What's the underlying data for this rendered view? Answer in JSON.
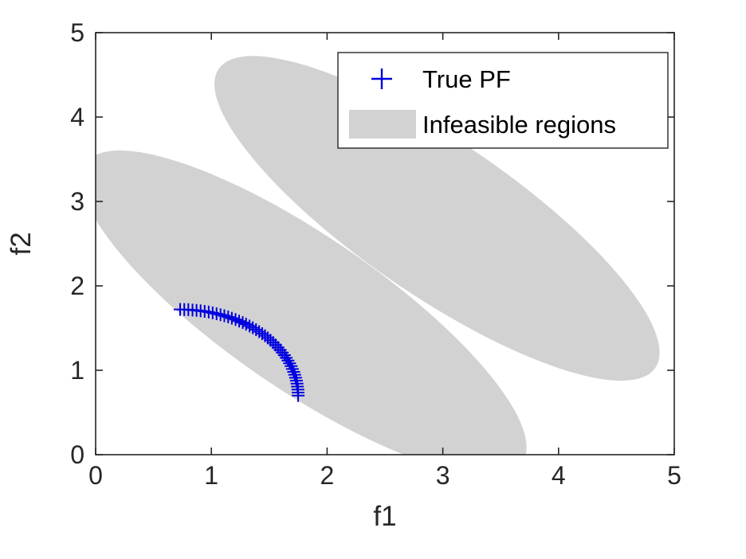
{
  "figure": {
    "background": "#ffffff"
  },
  "chart_data": {
    "type": "scatter",
    "title": "",
    "xlabel": "f1",
    "ylabel": "f2",
    "xlim": [
      0,
      5
    ],
    "ylim": [
      0,
      5
    ],
    "xticks": [
      0,
      1,
      2,
      3,
      4,
      5
    ],
    "yticks": [
      0,
      1,
      2,
      3,
      4,
      5
    ],
    "grid": false,
    "box": true,
    "axis_color": "#262626",
    "legend": {
      "position": "top-right",
      "border_color": "#262626",
      "background": "#ffffff",
      "entries": [
        {
          "label": "True PF",
          "type": "marker-plus",
          "color": "#0000e0"
        },
        {
          "label": "Infeasible regions",
          "type": "patch",
          "color": "#d2d2d2"
        }
      ]
    },
    "series": [
      {
        "name": "True PF",
        "type": "scatter",
        "marker": "plus",
        "color": "#0000e0",
        "points": [
          [
            0.73,
            1.72
          ],
          [
            0.766,
            1.719
          ],
          [
            0.801,
            1.718
          ],
          [
            0.837,
            1.714
          ],
          [
            0.872,
            1.71
          ],
          [
            0.907,
            1.704
          ],
          [
            0.942,
            1.698
          ],
          [
            0.977,
            1.69
          ],
          [
            1.011,
            1.681
          ],
          [
            1.045,
            1.67
          ],
          [
            1.079,
            1.658
          ],
          [
            1.112,
            1.646
          ],
          [
            1.145,
            1.632
          ],
          [
            1.177,
            1.617
          ],
          [
            1.209,
            1.601
          ],
          [
            1.24,
            1.583
          ],
          [
            1.271,
            1.565
          ],
          [
            1.3,
            1.546
          ],
          [
            1.33,
            1.525
          ],
          [
            1.358,
            1.504
          ],
          [
            1.386,
            1.481
          ],
          [
            1.413,
            1.458
          ],
          [
            1.439,
            1.434
          ],
          [
            1.464,
            1.409
          ],
          [
            1.488,
            1.383
          ],
          [
            1.511,
            1.356
          ],
          [
            1.534,
            1.328
          ],
          [
            1.555,
            1.3
          ],
          [
            1.576,
            1.27
          ],
          [
            1.595,
            1.241
          ],
          [
            1.613,
            1.21
          ],
          [
            1.631,
            1.179
          ],
          [
            1.647,
            1.147
          ],
          [
            1.662,
            1.115
          ],
          [
            1.676,
            1.082
          ],
          [
            1.689,
            1.049
          ],
          [
            1.7,
            1.015
          ],
          [
            1.711,
            0.981
          ],
          [
            1.72,
            0.947
          ],
          [
            1.728,
            0.912
          ],
          [
            1.735,
            0.877
          ],
          [
            1.74,
            0.842
          ],
          [
            1.744,
            0.807
          ],
          [
            1.748,
            0.771
          ],
          [
            1.749,
            0.736
          ],
          [
            1.75,
            0.7
          ]
        ]
      }
    ],
    "infeasible_regions": {
      "name": "Infeasible regions",
      "color": "#d2d2d2",
      "ellipses": [
        {
          "cx": 1.8,
          "cy": 1.68,
          "rx": 2.6,
          "ry": 0.8,
          "rotation_deg": -45
        },
        {
          "cx": 2.95,
          "cy": 2.8,
          "rx": 2.6,
          "ry": 0.8,
          "rotation_deg": -45
        }
      ]
    }
  }
}
